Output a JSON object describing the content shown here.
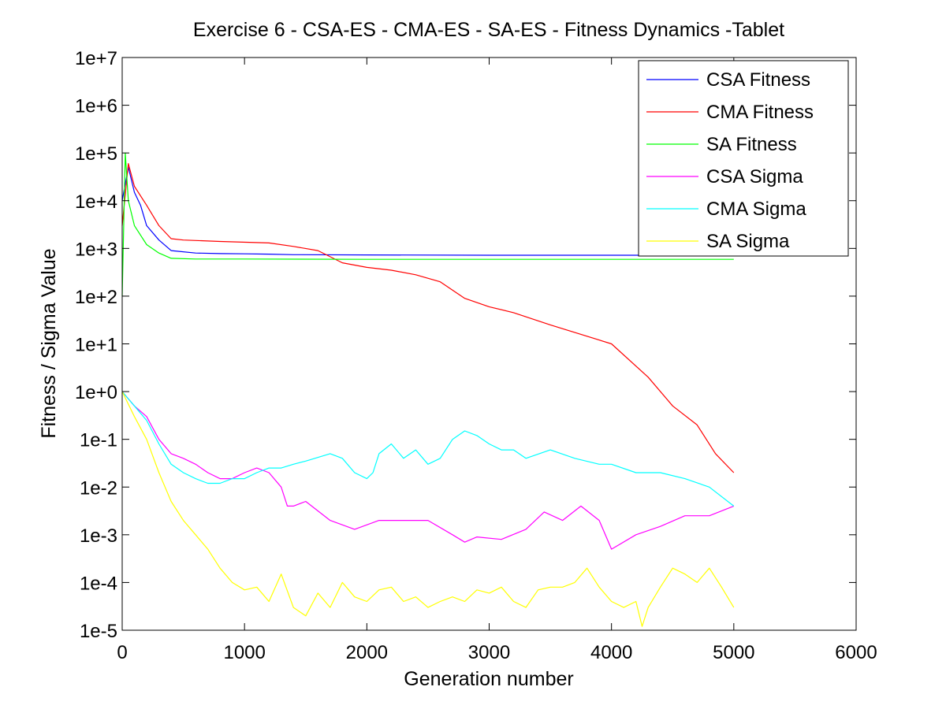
{
  "chart_data": {
    "type": "line",
    "title": "Exercise 6 - CSA-ES - CMA-ES - SA-ES - Fitness Dynamics -Tablet",
    "xlabel": "Generation number",
    "ylabel": "Fitness / Sigma Value",
    "xlim": [
      0,
      6000
    ],
    "ylim": [
      1e-05,
      10000000.0
    ],
    "yscale": "log",
    "x_ticks": [
      "0",
      "1000",
      "2000",
      "3000",
      "4000",
      "5000",
      "6000"
    ],
    "y_ticks": [
      "1e-5",
      "1e-4",
      "1e-3",
      "1e-2",
      "1e-1",
      "1e+0",
      "1e+1",
      "1e+2",
      "1e+3",
      "1e+4",
      "1e+5",
      "1e+6",
      "1e+7"
    ],
    "grid": false,
    "legend_position": "top-right",
    "series": [
      {
        "name": "CSA Fitness",
        "color": "#0000ff",
        "x": [
          0,
          50,
          100,
          150,
          200,
          300,
          400,
          600,
          800,
          1000,
          1200,
          1400,
          2000,
          3000,
          4000,
          5000
        ],
        "y": [
          10000,
          50000,
          15000,
          8000,
          3000,
          1500,
          900,
          800,
          780,
          770,
          760,
          740,
          730,
          720,
          720,
          720
        ]
      },
      {
        "name": "CMA Fitness",
        "color": "#ff0000",
        "x": [
          0,
          50,
          100,
          200,
          300,
          400,
          500,
          800,
          1200,
          1400,
          1600,
          1800,
          2000,
          2200,
          2400,
          2600,
          2800,
          3000,
          3200,
          3500,
          4000,
          4300,
          4500,
          4700,
          4850,
          5000
        ],
        "y": [
          3000,
          60000,
          20000,
          8000,
          3000,
          1600,
          1500,
          1400,
          1300,
          1100,
          900,
          500,
          400,
          350,
          280,
          200,
          90,
          60,
          45,
          25,
          10,
          2,
          0.5,
          0.2,
          0.05,
          0.02
        ]
      },
      {
        "name": "SA Fitness",
        "color": "#00ff00",
        "x": [
          0,
          25,
          50,
          100,
          200,
          300,
          400,
          600,
          1000,
          2000,
          3000,
          4000,
          5000
        ],
        "y": [
          100,
          100000,
          10000,
          3000,
          1200,
          800,
          620,
          600,
          600,
          590,
          590,
          590,
          590
        ]
      },
      {
        "name": "CSA Sigma",
        "color": "#ff00ff",
        "x": [
          0,
          100,
          200,
          300,
          400,
          500,
          600,
          700,
          800,
          900,
          1000,
          1100,
          1200,
          1300,
          1350,
          1400,
          1500,
          1700,
          1900,
          2100,
          2300,
          2500,
          2700,
          2800,
          2900,
          3100,
          3300,
          3450,
          3600,
          3750,
          3900,
          4000,
          4200,
          4400,
          4600,
          4800,
          5000
        ],
        "y": [
          1,
          0.5,
          0.3,
          0.1,
          0.05,
          0.04,
          0.03,
          0.02,
          0.015,
          0.015,
          0.02,
          0.025,
          0.02,
          0.01,
          0.004,
          0.004,
          0.005,
          0.002,
          0.0013,
          0.002,
          0.002,
          0.002,
          0.001,
          0.0007,
          0.0009,
          0.0008,
          0.0013,
          0.003,
          0.002,
          0.004,
          0.002,
          0.0005,
          0.001,
          0.0015,
          0.0025,
          0.0025,
          0.004
        ]
      },
      {
        "name": "CMA Sigma",
        "color": "#00ffff",
        "x": [
          0,
          100,
          200,
          300,
          400,
          500,
          600,
          700,
          800,
          900,
          1000,
          1100,
          1200,
          1300,
          1400,
          1500,
          1700,
          1800,
          1900,
          2000,
          2050,
          2100,
          2200,
          2300,
          2400,
          2500,
          2600,
          2700,
          2800,
          2900,
          3000,
          3100,
          3200,
          3300,
          3500,
          3700,
          3900,
          4000,
          4200,
          4400,
          4600,
          4800,
          5000
        ],
        "y": [
          1,
          0.5,
          0.25,
          0.08,
          0.03,
          0.02,
          0.015,
          0.012,
          0.012,
          0.015,
          0.015,
          0.02,
          0.025,
          0.025,
          0.03,
          0.035,
          0.05,
          0.04,
          0.02,
          0.015,
          0.02,
          0.05,
          0.08,
          0.04,
          0.06,
          0.03,
          0.04,
          0.1,
          0.15,
          0.12,
          0.08,
          0.06,
          0.06,
          0.04,
          0.06,
          0.04,
          0.03,
          0.03,
          0.02,
          0.02,
          0.015,
          0.01,
          0.004
        ]
      },
      {
        "name": "SA Sigma",
        "color": "#ffff00",
        "x": [
          0,
          100,
          200,
          300,
          400,
          500,
          600,
          700,
          800,
          900,
          1000,
          1100,
          1200,
          1300,
          1400,
          1500,
          1600,
          1700,
          1800,
          1900,
          2000,
          2100,
          2200,
          2300,
          2400,
          2500,
          2600,
          2700,
          2800,
          2900,
          3000,
          3100,
          3200,
          3300,
          3400,
          3500,
          3600,
          3700,
          3800,
          3900,
          4000,
          4100,
          4200,
          4250,
          4300,
          4400,
          4500,
          4600,
          4700,
          4800,
          4900,
          5000
        ],
        "y": [
          1,
          0.3,
          0.1,
          0.02,
          0.005,
          0.002,
          0.001,
          0.0005,
          0.0002,
          0.0001,
          7e-05,
          8e-05,
          4e-05,
          0.00015,
          3e-05,
          2e-05,
          6e-05,
          3e-05,
          0.0001,
          5e-05,
          4e-05,
          7e-05,
          8e-05,
          4e-05,
          5e-05,
          3e-05,
          4e-05,
          5e-05,
          4e-05,
          7e-05,
          6e-05,
          8e-05,
          4e-05,
          3e-05,
          7e-05,
          8e-05,
          8e-05,
          0.0001,
          0.0002,
          8e-05,
          4e-05,
          3e-05,
          4e-05,
          1.2e-05,
          3e-05,
          8e-05,
          0.0002,
          0.00015,
          0.0001,
          0.0002,
          8e-05,
          3e-05
        ]
      }
    ]
  }
}
